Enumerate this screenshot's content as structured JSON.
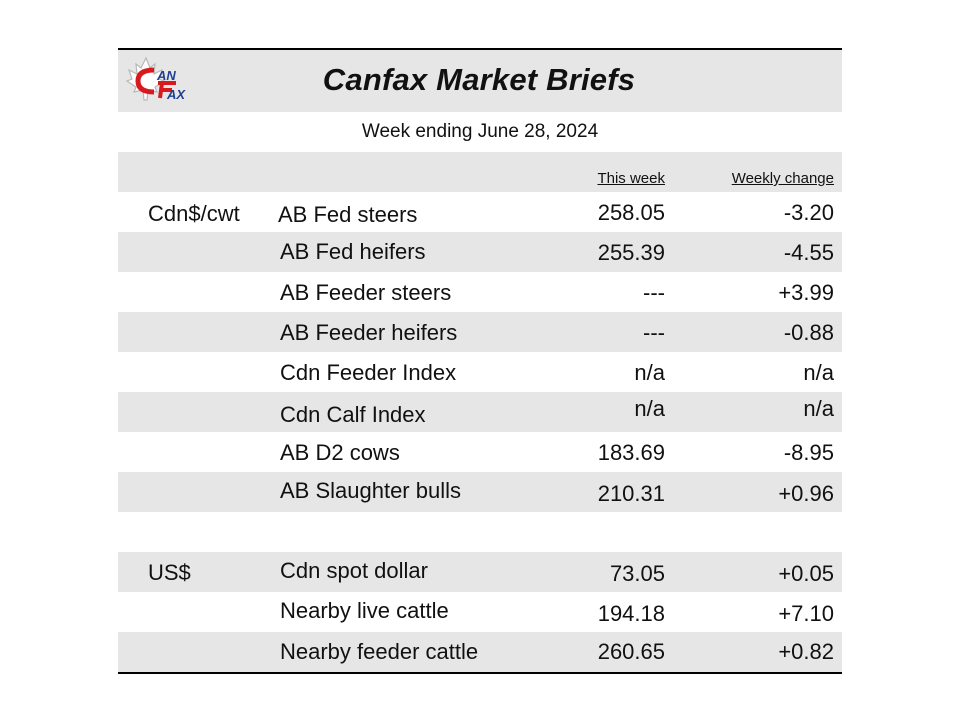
{
  "header": {
    "logo_text": "CANFAX",
    "title": "Canfax Market Briefs",
    "subtitle": "Week ending June 28, 2024"
  },
  "columns": {
    "this_week": "This week",
    "weekly_change": "Weekly change"
  },
  "cad_section": {
    "unit": "Cdn$/cwt",
    "rows": [
      {
        "label": "AB Fed steers",
        "this_week": "258.05",
        "change": "-3.20"
      },
      {
        "label": "AB Fed heifers",
        "this_week": "255.39",
        "change": "-4.55"
      },
      {
        "label": "AB Feeder steers",
        "this_week": "---",
        "change": "+3.99"
      },
      {
        "label": "AB Feeder heifers",
        "this_week": "---",
        "change": "-0.88"
      },
      {
        "label": "Cdn Feeder Index",
        "this_week": "n/a",
        "change": "n/a"
      },
      {
        "label": "Cdn Calf Index",
        "this_week": "n/a",
        "change": "n/a"
      },
      {
        "label": "AB D2 cows",
        "this_week": "183.69",
        "change": "-8.95"
      },
      {
        "label": "AB Slaughter bulls",
        "this_week": "210.31",
        "change": "+0.96"
      }
    ]
  },
  "usd_section": {
    "unit": "US$",
    "rows": [
      {
        "label": "Cdn spot dollar",
        "this_week": "73.05",
        "change": "+0.05"
      },
      {
        "label": "Nearby live cattle",
        "this_week": "194.18",
        "change": "+7.10"
      },
      {
        "label": "Nearby feeder cattle",
        "this_week": "260.65",
        "change": "+0.82"
      }
    ]
  },
  "colors": {
    "band": "#e6e6e6",
    "logo_red": "#d71920",
    "logo_blue": "#1f3f93"
  }
}
